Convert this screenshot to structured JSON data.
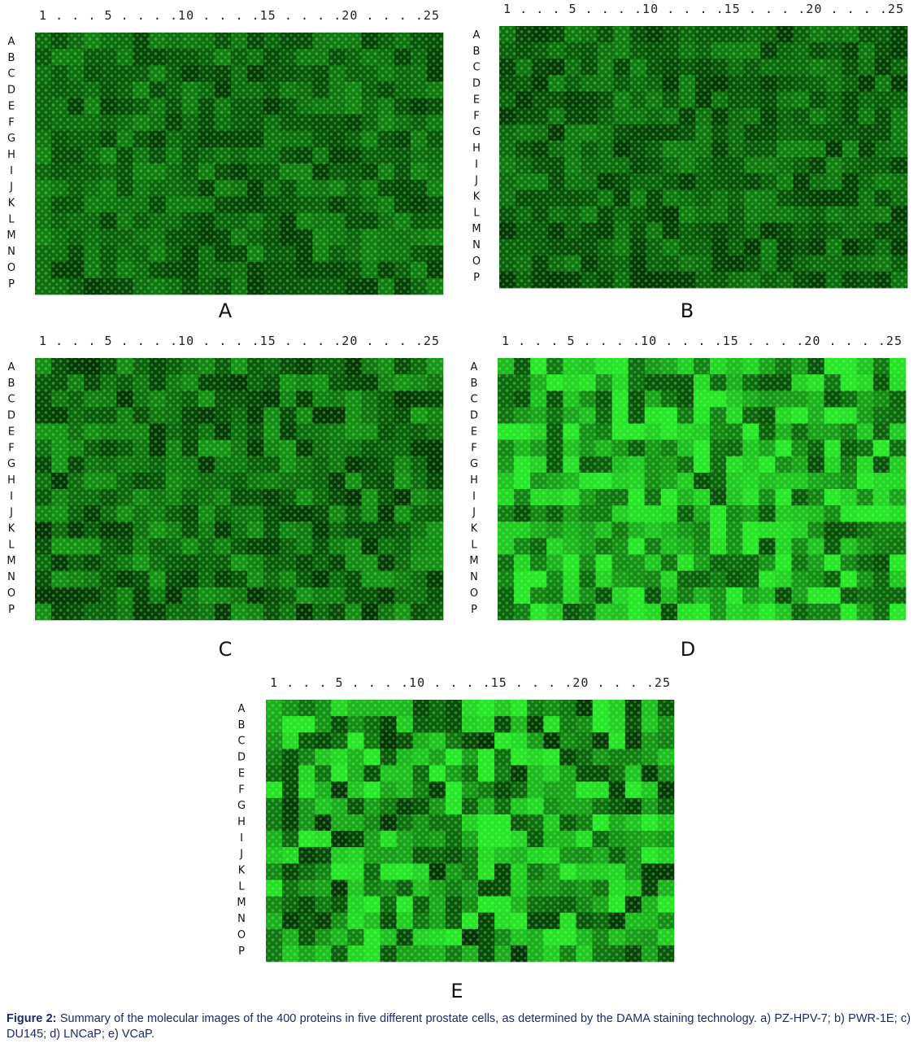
{
  "panels": [
    {
      "label": "A",
      "column_header": "1 . . . 5 . . . .10 . . . .15 . . . .20 . . . .25",
      "rows": [
        "A",
        "B",
        "C",
        "D",
        "E",
        "F",
        "G",
        "H",
        "I",
        "J",
        "K",
        "L",
        "M",
        "N",
        "O",
        "P"
      ]
    },
    {
      "label": "B",
      "column_header": "1 . . . 5 . . . .10 . . . .15 . . . .20 . . . .25",
      "rows": [
        "A",
        "B",
        "C",
        "D",
        "E",
        "F",
        "G",
        "H",
        "I",
        "J",
        "K",
        "L",
        "M",
        "N",
        "O",
        "P"
      ]
    },
    {
      "label": "C",
      "column_header": "1 . . . 5 . . . .10 . . . .15 . . . .20 . . . .25",
      "rows": [
        "A",
        "B",
        "C",
        "D",
        "E",
        "F",
        "G",
        "H",
        "I",
        "J",
        "K",
        "L",
        "M",
        "N",
        "O",
        "P"
      ]
    },
    {
      "label": "D",
      "column_header": "1 . . . 5 . . . .10 . . . .15 . . . .20 . . . .25",
      "rows": [
        "A",
        "B",
        "C",
        "D",
        "E",
        "F",
        "G",
        "H",
        "I",
        "J",
        "K",
        "L",
        "M",
        "N",
        "O",
        "P"
      ]
    },
    {
      "label": "E",
      "column_header": "1 . . . 5 . . . .10 . . . .15 . . . .20 . . . .25",
      "rows": [
        "A",
        "B",
        "C",
        "D",
        "E",
        "F",
        "G",
        "H",
        "I",
        "J",
        "K",
        "L",
        "M",
        "N",
        "O",
        "P"
      ]
    }
  ],
  "caption": {
    "label": "Figure 2:",
    "text": "Summary of the molecular images of the 400 proteins in five different prostate cells, as determined by the DAMA staining technology. a) PZ-HPV-7; b) PWR-1E; c) DU145; d) LNCaP; e) VCaP."
  }
}
